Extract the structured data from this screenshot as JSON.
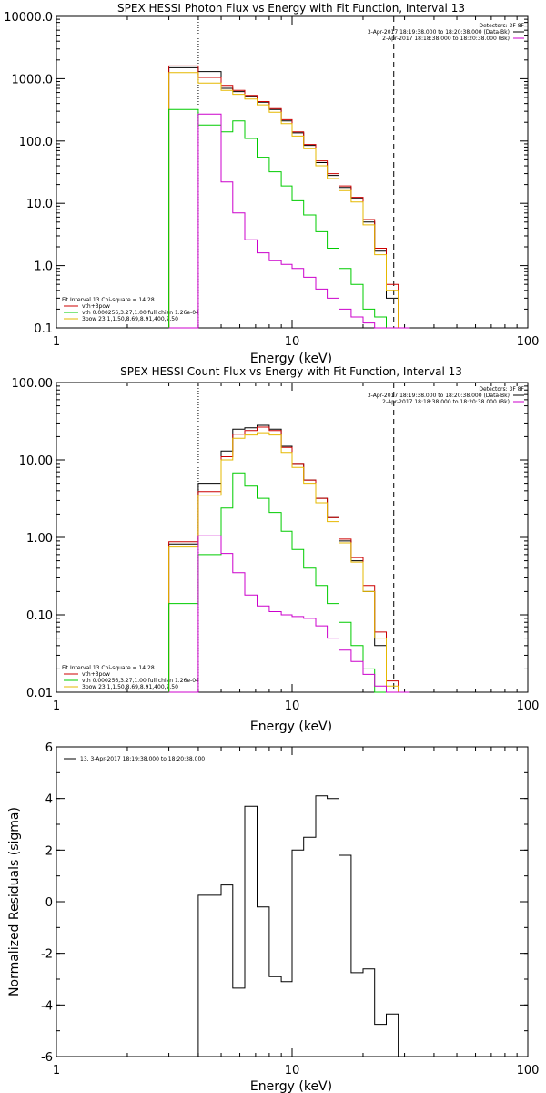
{
  "chart_data": [
    {
      "type": "line",
      "step": true,
      "title": "SPEX HESSI Photon Flux vs Energy with Fit Function, Interval 13",
      "xlabel": "Energy (keV)",
      "ylabel": "",
      "xscale": "log",
      "yscale": "log",
      "xlim": [
        1,
        100
      ],
      "ylim": [
        0.1,
        10000
      ],
      "xticks": [
        {
          "v": 1,
          "label": "1"
        },
        {
          "v": 10,
          "label": "10"
        },
        {
          "v": 100,
          "label": "100"
        }
      ],
      "yticks": [
        {
          "v": 0.1,
          "label": "0.1"
        },
        {
          "v": 1,
          "label": "1.0"
        },
        {
          "v": 10,
          "label": "10.0"
        },
        {
          "v": 100,
          "label": "100.0"
        },
        {
          "v": 1000,
          "label": "1000.0"
        },
        {
          "v": 10000,
          "label": "10000.0"
        }
      ],
      "vlines": [
        {
          "x": 4.0,
          "style": "dotted"
        },
        {
          "x": 27.0,
          "style": "dashed"
        }
      ],
      "edges": [
        3.0,
        4.0,
        5.0,
        5.6,
        6.3,
        7.1,
        8.0,
        9.0,
        10.0,
        11.2,
        12.6,
        14.1,
        15.8,
        17.8,
        20.0,
        22.4,
        25.1,
        28.2,
        31.6
      ],
      "series": [
        {
          "name": "",
          "color": "#000000",
          "values": [
            1500,
            1300,
            700,
            620,
            520,
            420,
            320,
            210,
            135,
            85,
            45,
            28,
            18,
            12,
            5,
            1.7,
            0.3,
            0.1
          ]
        },
        {
          "name": "",
          "color": "#cc0000",
          "values": [
            1600,
            1050,
            780,
            650,
            540,
            430,
            330,
            220,
            140,
            88,
            48,
            30,
            19,
            12.5,
            5.5,
            1.9,
            0.5,
            0.1
          ]
        },
        {
          "name": "",
          "color": "#e6b800",
          "values": [
            1250,
            850,
            650,
            560,
            470,
            380,
            290,
            190,
            120,
            75,
            40,
            25,
            16,
            10.5,
            4.5,
            1.5,
            0.4,
            0.1
          ]
        },
        {
          "name": "",
          "color": "#00cc00",
          "values": [
            320,
            180,
            140,
            210,
            110,
            55,
            32,
            19,
            11,
            6.5,
            3.5,
            1.9,
            0.9,
            0.5,
            0.2,
            0.15,
            0.1,
            0.1
          ]
        },
        {
          "name": "",
          "color": "#cc00cc",
          "values": [
            0.1,
            270,
            22,
            7,
            2.6,
            1.6,
            1.2,
            1.05,
            0.9,
            0.65,
            0.42,
            0.3,
            0.2,
            0.15,
            0.12,
            0.1,
            0.1,
            0.1
          ]
        }
      ],
      "detectors": "Detectors: 3F 8F",
      "time_legend": [
        {
          "text": "3-Apr-2017 18:19:38.000 to 18:20:38.000 (Data-Bk)",
          "color": "#000000"
        },
        {
          "text": "2-Apr-2017 18:18:38.000 to 18:20:38.000 (Bk)",
          "color": "#cc00cc"
        }
      ],
      "fit_header": "Fit Interval 13   Chi-square = 14.28",
      "fit_legend": [
        {
          "text": "vth+3pow",
          "color": "#cc0000"
        },
        {
          "text": "vth 0.000256,3.27,1.00  full chian 1.26e-04",
          "color": "#00cc00"
        },
        {
          "text": "3pow 23.1,1.50,8.69,8.91,400,2.50",
          "color": "#e6b800"
        }
      ]
    },
    {
      "type": "line",
      "step": true,
      "title": "SPEX HESSI Count Flux vs Energy with Fit Function, Interval 13",
      "xlabel": "Energy (keV)",
      "ylabel": "",
      "xscale": "log",
      "yscale": "log",
      "xlim": [
        1,
        100
      ],
      "ylim": [
        0.01,
        100
      ],
      "xticks": [
        {
          "v": 1,
          "label": "1"
        },
        {
          "v": 10,
          "label": "10"
        },
        {
          "v": 100,
          "label": "100"
        }
      ],
      "yticks": [
        {
          "v": 0.01,
          "label": "0.01"
        },
        {
          "v": 0.1,
          "label": "0.10"
        },
        {
          "v": 1,
          "label": "1.00"
        },
        {
          "v": 10,
          "label": "10.00"
        },
        {
          "v": 100,
          "label": "100.00"
        }
      ],
      "vlines": [
        {
          "x": 4.0,
          "style": "dotted"
        },
        {
          "x": 27.0,
          "style": "dashed"
        }
      ],
      "edges": [
        3.0,
        4.0,
        5.0,
        5.6,
        6.3,
        7.1,
        8.0,
        9.0,
        10.0,
        11.2,
        12.6,
        14.1,
        15.8,
        17.8,
        20.0,
        22.4,
        25.1,
        28.2,
        31.6
      ],
      "series": [
        {
          "name": "",
          "color": "#000000",
          "values": [
            0.82,
            5.0,
            13,
            25,
            26,
            28,
            25,
            15,
            9,
            5.5,
            3.2,
            1.8,
            0.9,
            0.5,
            0.2,
            0.04,
            0.01,
            0.01
          ]
        },
        {
          "name": "",
          "color": "#cc0000",
          "values": [
            0.88,
            3.9,
            11,
            21.5,
            24,
            26.5,
            24,
            14.5,
            9,
            5.5,
            3.2,
            1.8,
            0.95,
            0.55,
            0.24,
            0.06,
            0.014,
            0.01
          ]
        },
        {
          "name": "",
          "color": "#e6b800",
          "values": [
            0.75,
            3.5,
            10,
            19,
            21,
            22.5,
            21,
            12.5,
            8,
            5,
            2.8,
            1.6,
            0.85,
            0.48,
            0.2,
            0.05,
            0.012,
            0.01
          ]
        },
        {
          "name": "",
          "color": "#00cc00",
          "values": [
            0.14,
            0.6,
            2.4,
            6.8,
            4.6,
            3.2,
            2.1,
            1.2,
            0.7,
            0.4,
            0.24,
            0.14,
            0.08,
            0.04,
            0.02,
            0.01,
            0.01,
            0.01
          ]
        },
        {
          "name": "",
          "color": "#cc00cc",
          "values": [
            0.01,
            1.05,
            0.62,
            0.35,
            0.18,
            0.13,
            0.11,
            0.1,
            0.095,
            0.09,
            0.072,
            0.05,
            0.035,
            0.025,
            0.017,
            0.012,
            0.01,
            0.01
          ]
        }
      ],
      "detectors": "Detectors: 3F 8F",
      "time_legend": [
        {
          "text": "3-Apr-2017 18:19:38.000 to 18:20:38.000 (Data-Bk)",
          "color": "#000000"
        },
        {
          "text": "2-Apr-2017 18:18:38.000 to 18:20:38.000 (Bk)",
          "color": "#cc00cc"
        }
      ],
      "fit_header": "Fit Interval 13   Chi-square = 14.28",
      "fit_legend": [
        {
          "text": "vth+3pow",
          "color": "#cc0000"
        },
        {
          "text": "vth 0.000256,3.27,1.00  full chian 1.26e-04",
          "color": "#00cc00"
        },
        {
          "text": "3pow 23.1,1.50,8.69,8.91,400,2.50",
          "color": "#e6b800"
        }
      ]
    },
    {
      "type": "line",
      "step": true,
      "title": "",
      "xlabel": "Energy (keV)",
      "ylabel": "Normalized Residuals (sigma)",
      "xscale": "log",
      "yscale": "linear",
      "xlim": [
        1,
        100
      ],
      "ylim": [
        -6,
        6
      ],
      "xticks": [
        {
          "v": 1,
          "label": "1"
        },
        {
          "v": 10,
          "label": "10"
        },
        {
          "v": 100,
          "label": "100"
        }
      ],
      "yticks": [
        {
          "v": -6,
          "label": "-6"
        },
        {
          "v": -4,
          "label": "-4"
        },
        {
          "v": -2,
          "label": "-2"
        },
        {
          "v": 0,
          "label": "0"
        },
        {
          "v": 2,
          "label": "2"
        },
        {
          "v": 4,
          "label": "4"
        },
        {
          "v": 6,
          "label": "6"
        }
      ],
      "edges": [
        4.0,
        5.0,
        5.6,
        6.3,
        7.1,
        8.0,
        9.0,
        10.0,
        11.2,
        12.6,
        14.1,
        15.8,
        17.8,
        20.0,
        22.4,
        25.1,
        28.2
      ],
      "series": [
        {
          "name": "13,  3-Apr-2017 18:19:38.000 to 18:20:38.000",
          "color": "#000000",
          "values": [
            0.25,
            0.65,
            -3.35,
            3.7,
            -0.2,
            -2.9,
            -3.1,
            2.0,
            2.5,
            4.1,
            4.0,
            1.8,
            -2.75,
            -2.6,
            -4.75,
            -4.35
          ]
        }
      ]
    }
  ]
}
